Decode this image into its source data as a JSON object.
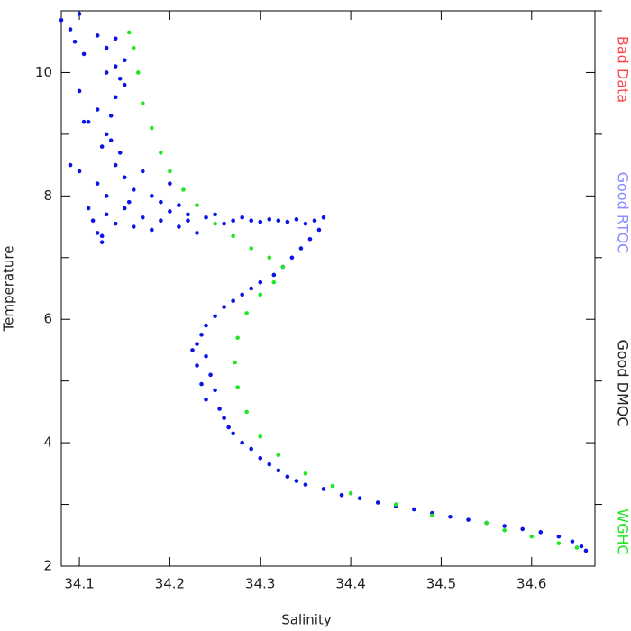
{
  "chart_data": {
    "type": "scatter",
    "x_label": "Salinity",
    "y_label": "Temperature",
    "xlim": [
      34.08,
      34.67
    ],
    "ylim": [
      2,
      11
    ],
    "xticks": [
      34.1,
      34.2,
      34.3,
      34.4,
      34.5,
      34.6
    ],
    "yticks": [
      2,
      4,
      6,
      8,
      10
    ],
    "y_minor_ticks": [
      3,
      5,
      7,
      9,
      11
    ],
    "series": [
      {
        "name": "Bad Data",
        "color": "#ff4a4a",
        "x": [],
        "y": []
      },
      {
        "name": "Good RTQC",
        "color": "#8c8cff",
        "x": [],
        "y": []
      },
      {
        "name": "Good DMQC",
        "color": "#222222",
        "marker_color": "#0a14e6",
        "x": [
          34.08,
          34.09,
          34.1,
          34.095,
          34.105,
          34.12,
          34.13,
          34.14,
          34.15,
          34.145,
          34.14,
          34.135,
          34.13,
          34.125,
          34.14,
          34.11,
          34.1,
          34.1,
          34.09,
          34.12,
          34.13,
          34.15,
          34.16,
          34.17,
          34.18,
          34.19,
          34.2,
          34.21,
          34.22,
          34.11,
          34.115,
          34.12,
          34.125,
          34.13,
          34.14,
          34.15,
          34.16,
          34.17,
          34.18,
          34.19,
          34.2,
          34.21,
          34.22,
          34.23,
          34.24,
          34.25,
          34.26,
          34.27,
          34.28,
          34.29,
          34.3,
          34.31,
          34.32,
          34.33,
          34.34,
          34.35,
          34.36,
          34.37,
          34.365,
          34.355,
          34.345,
          34.335,
          34.325,
          34.315,
          34.3,
          34.29,
          34.28,
          34.27,
          34.26,
          34.25,
          34.24,
          34.235,
          34.23,
          34.225,
          34.24,
          34.23,
          34.245,
          34.235,
          34.25,
          34.24,
          34.255,
          34.26,
          34.265,
          34.27,
          34.28,
          34.29,
          34.3,
          34.31,
          34.32,
          34.33,
          34.34,
          34.35,
          34.37,
          34.39,
          34.41,
          34.43,
          34.45,
          34.47,
          34.49,
          34.51,
          34.53,
          34.55,
          34.57,
          34.59,
          34.61,
          34.63,
          34.645,
          34.655,
          34.66,
          34.105,
          34.14,
          34.13,
          34.12,
          34.15,
          34.135,
          34.145,
          34.125,
          34.155
        ],
        "y": [
          10.85,
          10.7,
          10.95,
          10.5,
          10.3,
          10.6,
          10.4,
          10.55,
          10.2,
          9.9,
          9.6,
          9.3,
          9.0,
          8.8,
          8.5,
          9.2,
          9.7,
          8.4,
          8.5,
          8.2,
          8.0,
          8.3,
          8.1,
          8.4,
          8.0,
          7.9,
          8.2,
          7.85,
          7.7,
          7.8,
          7.6,
          7.4,
          7.25,
          7.7,
          7.55,
          7.8,
          7.5,
          7.65,
          7.45,
          7.6,
          7.75,
          7.5,
          7.6,
          7.4,
          7.65,
          7.7,
          7.55,
          7.6,
          7.65,
          7.6,
          7.58,
          7.62,
          7.6,
          7.58,
          7.62,
          7.55,
          7.6,
          7.65,
          7.45,
          7.3,
          7.15,
          7.0,
          6.85,
          6.72,
          6.6,
          6.5,
          6.4,
          6.3,
          6.2,
          6.05,
          5.9,
          5.75,
          5.6,
          5.5,
          5.4,
          5.25,
          5.1,
          4.95,
          4.85,
          4.7,
          4.55,
          4.4,
          4.25,
          4.15,
          4.0,
          3.9,
          3.75,
          3.65,
          3.55,
          3.45,
          3.38,
          3.32,
          3.25,
          3.15,
          3.1,
          3.03,
          2.97,
          2.92,
          2.86,
          2.8,
          2.75,
          2.7,
          2.65,
          2.6,
          2.55,
          2.48,
          2.4,
          2.32,
          2.25,
          9.2,
          10.1,
          10.0,
          9.4,
          9.8,
          8.9,
          8.7,
          7.35,
          7.9
        ]
      },
      {
        "name": "WGHC",
        "color": "#22e622",
        "x": [
          34.155,
          34.16,
          34.165,
          34.17,
          34.18,
          34.19,
          34.2,
          34.215,
          34.23,
          34.25,
          34.27,
          34.29,
          34.31,
          34.325,
          34.315,
          34.3,
          34.285,
          34.275,
          34.272,
          34.275,
          34.285,
          34.3,
          34.32,
          34.35,
          34.38,
          34.4,
          34.45,
          34.49,
          34.55,
          34.57,
          34.6,
          34.63,
          34.65
        ],
        "y": [
          10.65,
          10.4,
          10.0,
          9.5,
          9.1,
          8.7,
          8.4,
          8.1,
          7.85,
          7.55,
          7.35,
          7.15,
          7.0,
          6.85,
          6.6,
          6.4,
          6.1,
          5.7,
          5.3,
          4.9,
          4.5,
          4.1,
          3.8,
          3.5,
          3.3,
          3.18,
          3.0,
          2.82,
          2.7,
          2.58,
          2.48,
          2.37,
          2.3
        ]
      }
    ]
  }
}
